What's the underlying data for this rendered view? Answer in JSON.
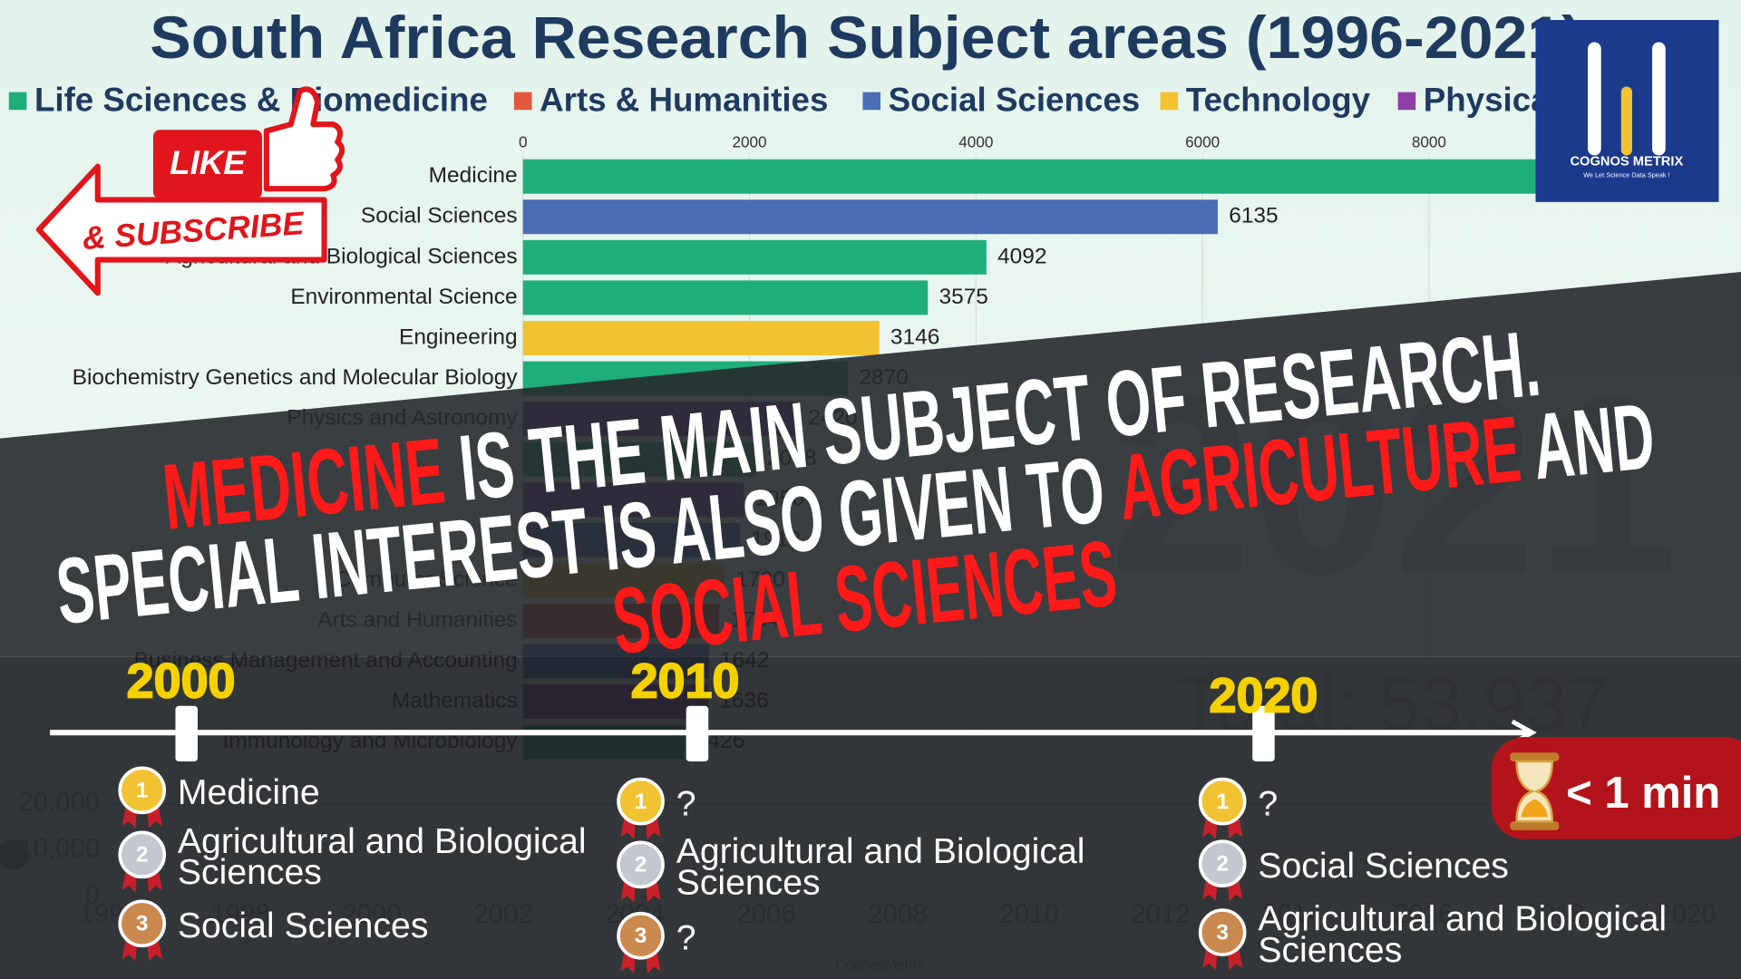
{
  "chart_data": {
    "type": "bar",
    "orientation": "horizontal",
    "title": "South Africa Research Subject areas (1996-2021)",
    "legend": [
      {
        "name": "Life Sciences & Biomedicine",
        "color": "#1fae7a"
      },
      {
        "name": "Arts & Humanities",
        "color": "#e2583a"
      },
      {
        "name": "Social Sciences",
        "color": "#4a6db3"
      },
      {
        "name": "Technology",
        "color": "#f2c230"
      },
      {
        "name": "Physica",
        "color": "#8e3fa8"
      }
    ],
    "categories": [
      "Medicine",
      "Social Sciences",
      "Agricultural and Biological Sciences",
      "Environmental Science",
      "Engineering",
      "Biochemistry Genetics and Molecular Biology",
      "Physics and Astronomy",
      null,
      null,
      null,
      "Computer Science",
      "Arts and Humanities",
      "Business Management and Accounting",
      "Mathematics",
      "Immunology and Microbiology"
    ],
    "values": [
      9870,
      6135,
      4092,
      3575,
      3146,
      2870,
      2420,
      2058,
      1950,
      1918,
      1780,
      1734,
      1642,
      1636,
      1426
    ],
    "colors": [
      "#1fae7a",
      "#4a6db3",
      "#1fae7a",
      "#1fae7a",
      "#f2c230",
      "#1fae7a",
      "#8e3fa8",
      "#1fae7a",
      "#8e3fa8",
      "#4a6db3",
      "#f2c230",
      "#e2583a",
      "#4a6db3",
      "#8e3fa8",
      "#1fae7a"
    ],
    "xlim": [
      0,
      10000
    ],
    "xticks": [
      0,
      2000,
      4000,
      6000,
      8000
    ],
    "grid": true,
    "year_label": "2021",
    "total_label": "Total: 53,937"
  },
  "mini_chart": {
    "ylim": [
      0,
      20000
    ],
    "yticks": [
      {
        "value": 0,
        "label": "0"
      },
      {
        "value": 10000,
        "label": "10,000"
      },
      {
        "value": 20000,
        "label": "20,000"
      }
    ],
    "xlim": [
      1996,
      2020
    ],
    "xticks": [
      1996,
      1998,
      2000,
      2002,
      2004,
      2006,
      2008,
      2010,
      2012,
      2014,
      2016,
      2018,
      2020
    ],
    "credit": "CognosMetrix"
  },
  "headline": {
    "lines": [
      [
        {
          "text": "MEDICINE",
          "color": "#ff1a1a"
        },
        {
          "text": " IS THE MAIN SUBJECT OF RESEARCH.",
          "color": "#ffffff"
        }
      ],
      [
        {
          "text": "SPECIAL INTEREST IS ALSO GIVEN TO ",
          "color": "#ffffff"
        },
        {
          "text": "AGRICULTURE",
          "color": "#ff1a1a"
        },
        {
          "text": " AND",
          "color": "#ffffff"
        }
      ],
      [
        {
          "text": "SOCIAL SCIENCES",
          "color": "#ff1a1a"
        }
      ]
    ]
  },
  "promo": {
    "like": "LIKE",
    "subscribe": "& SUBSCRIBE"
  },
  "logo": {
    "name": "COGNOS METRIX",
    "tagline": "We Let Science Data Speak !"
  },
  "timeline": {
    "milestones": [
      {
        "year": "2000",
        "ranks": [
          {
            "rank": 1,
            "label": [
              "Medicine"
            ]
          },
          {
            "rank": 2,
            "label": [
              "Agricultural and Biological",
              "Sciences"
            ]
          },
          {
            "rank": 3,
            "label": [
              "Social Sciences"
            ]
          }
        ]
      },
      {
        "year": "2010",
        "ranks": [
          {
            "rank": 1,
            "label": [
              "?"
            ]
          },
          {
            "rank": 2,
            "label": [
              "Agricultural and Biological",
              "Sciences"
            ]
          },
          {
            "rank": 3,
            "label": [
              "?"
            ]
          }
        ]
      },
      {
        "year": "2020",
        "ranks": [
          {
            "rank": 1,
            "label": [
              "?"
            ]
          },
          {
            "rank": 2,
            "label": [
              "Social Sciences"
            ]
          },
          {
            "rank": 3,
            "label": [
              "Agricultural and Biological",
              "Sciences"
            ]
          }
        ]
      }
    ]
  },
  "badge": "< 1 min"
}
